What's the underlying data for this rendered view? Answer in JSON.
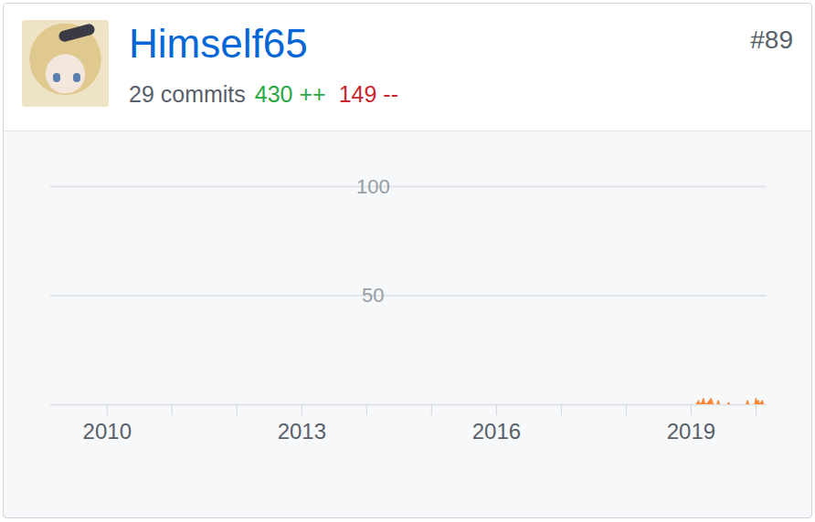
{
  "header": {
    "name": "Himself65",
    "rank": "#89",
    "commits": "29 commits",
    "additions": "430 ++",
    "deletions": "149 --"
  },
  "chart_data": {
    "type": "area",
    "color": "#fb8532",
    "grid": true,
    "x": [
      2019.0,
      2019.02,
      2019.04,
      2019.06,
      2019.08,
      2019.1,
      2019.12,
      2019.13,
      2019.17,
      2019.19,
      2019.21,
      2019.23,
      2019.29,
      2019.31,
      2019.33,
      2019.35,
      2019.4,
      2019.42,
      2019.44,
      2019.56,
      2019.58,
      2019.6,
      2019.85,
      2019.87,
      2019.88,
      2019.9,
      2019.98,
      2020.0,
      2020.02,
      2020.04,
      2020.06,
      2020.08,
      2020.1,
      2020.12,
      2020.15
    ],
    "values": [
      0,
      0,
      0,
      0,
      0,
      1,
      2,
      0,
      1,
      3,
      1,
      0,
      2,
      3,
      1,
      0,
      0,
      2,
      0,
      0,
      1,
      0,
      0,
      2,
      1,
      0,
      0,
      3,
      1,
      2,
      0,
      1,
      2,
      0,
      0
    ],
    "xlim": [
      2009.13,
      2020.17
    ],
    "xticks": [
      2010,
      2013,
      2016,
      2019
    ],
    "ylim": [
      0,
      100
    ],
    "yticks": [
      50,
      100
    ]
  }
}
